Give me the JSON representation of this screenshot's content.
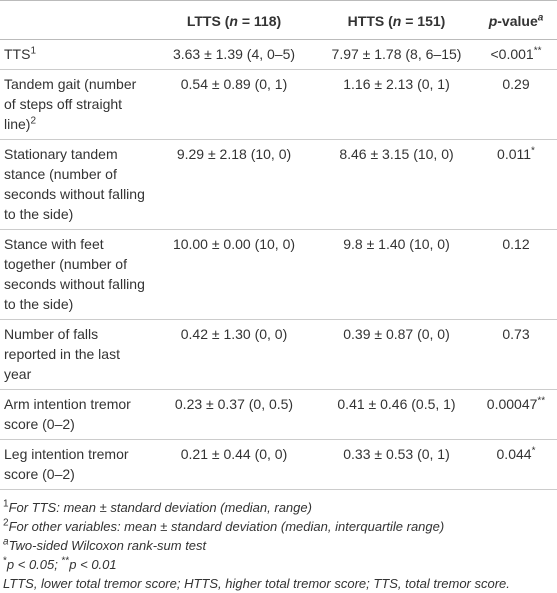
{
  "table": {
    "headers": [
      [
        {
          "text": "LTTS ("
        },
        {
          "text": "n",
          "style": "italic"
        },
        {
          "text": " = 118)"
        }
      ],
      [
        {
          "text": "HTTS ("
        },
        {
          "text": "n",
          "style": "italic"
        },
        {
          "text": " = 151)"
        }
      ],
      [
        {
          "text": "p",
          "style": "italic"
        },
        {
          "text": "-value"
        },
        {
          "text": "a",
          "style": "sup-italic"
        }
      ]
    ],
    "rows": [
      {
        "label": [
          {
            "text": "TTS"
          },
          {
            "text": "1",
            "style": "sup"
          }
        ],
        "cells": [
          [
            {
              "text": "3.63 ± 1.39 (4, 0–5)"
            }
          ],
          [
            {
              "text": "7.97 ± 1.78 (8, 6–15)"
            }
          ],
          [
            {
              "text": "<0.001"
            },
            {
              "text": "**",
              "style": "sup"
            }
          ]
        ]
      },
      {
        "label": [
          {
            "text": "Tandem gait (number of steps off straight line)"
          },
          {
            "text": "2",
            "style": "sup"
          }
        ],
        "cells": [
          [
            {
              "text": "0.54 ± 0.89 (0, 1)"
            }
          ],
          [
            {
              "text": "1.16 ± 2.13 (0, 1)"
            }
          ],
          [
            {
              "text": "0.29"
            }
          ]
        ]
      },
      {
        "label": [
          {
            "text": "Stationary tandem stance (number of seconds without falling to the side)"
          }
        ],
        "cells": [
          [
            {
              "text": "9.29 ± 2.18 (10, 0)"
            }
          ],
          [
            {
              "text": "8.46 ± 3.15 (10, 0)"
            }
          ],
          [
            {
              "text": "0.011"
            },
            {
              "text": "*",
              "style": "sup"
            }
          ]
        ]
      },
      {
        "label": [
          {
            "text": "Stance with feet together (number of seconds without falling to the side)"
          }
        ],
        "cells": [
          [
            {
              "text": "10.00 ± 0.00 (10, 0)"
            }
          ],
          [
            {
              "text": "9.8 ± 1.40 (10, 0)"
            }
          ],
          [
            {
              "text": "0.12"
            }
          ]
        ]
      },
      {
        "label": [
          {
            "text": "Number of falls reported in the last year"
          }
        ],
        "cells": [
          [
            {
              "text": "0.42 ± 1.30 (0, 0)"
            }
          ],
          [
            {
              "text": "0.39 ± 0.87 (0, 0)"
            }
          ],
          [
            {
              "text": "0.73"
            }
          ]
        ]
      },
      {
        "label": [
          {
            "text": "Arm intention tremor score (0–2)"
          }
        ],
        "cells": [
          [
            {
              "text": "0.23 ± 0.37 (0, 0.5)"
            }
          ],
          [
            {
              "text": "0.41 ± 0.46 (0.5, 1)"
            }
          ],
          [
            {
              "text": "0.00047"
            },
            {
              "text": "**",
              "style": "sup"
            }
          ]
        ]
      },
      {
        "label": [
          {
            "text": "Leg intention tremor score (0–2)"
          }
        ],
        "cells": [
          [
            {
              "text": "0.21 ± 0.44 (0, 0)"
            }
          ],
          [
            {
              "text": "0.33 ± 0.53 (0, 1)"
            }
          ],
          [
            {
              "text": "0.044"
            },
            {
              "text": "*",
              "style": "sup"
            }
          ]
        ]
      }
    ],
    "footnotes": [
      [
        {
          "text": "1",
          "style": "sup"
        },
        {
          "text": "For TTS: mean ± standard deviation (median, range)",
          "style": "italic"
        }
      ],
      [
        {
          "text": "2",
          "style": "sup"
        },
        {
          "text": "For other variables: mean ± standard deviation (median, interquartile range)",
          "style": "italic"
        }
      ],
      [
        {
          "text": "a",
          "style": "sup-italic"
        },
        {
          "text": "Two-sided Wilcoxon rank-sum test",
          "style": "italic"
        }
      ],
      [
        {
          "text": "*",
          "style": "sup"
        },
        {
          "text": "p < 0.05; ",
          "style": "italic"
        },
        {
          "text": "**",
          "style": "sup"
        },
        {
          "text": "p < 0.01",
          "style": "italic"
        }
      ],
      [
        {
          "text": "LTTS, lower total tremor score; HTTS, higher total tremor score; TTS, total tremor score.",
          "style": "italic"
        }
      ]
    ]
  }
}
